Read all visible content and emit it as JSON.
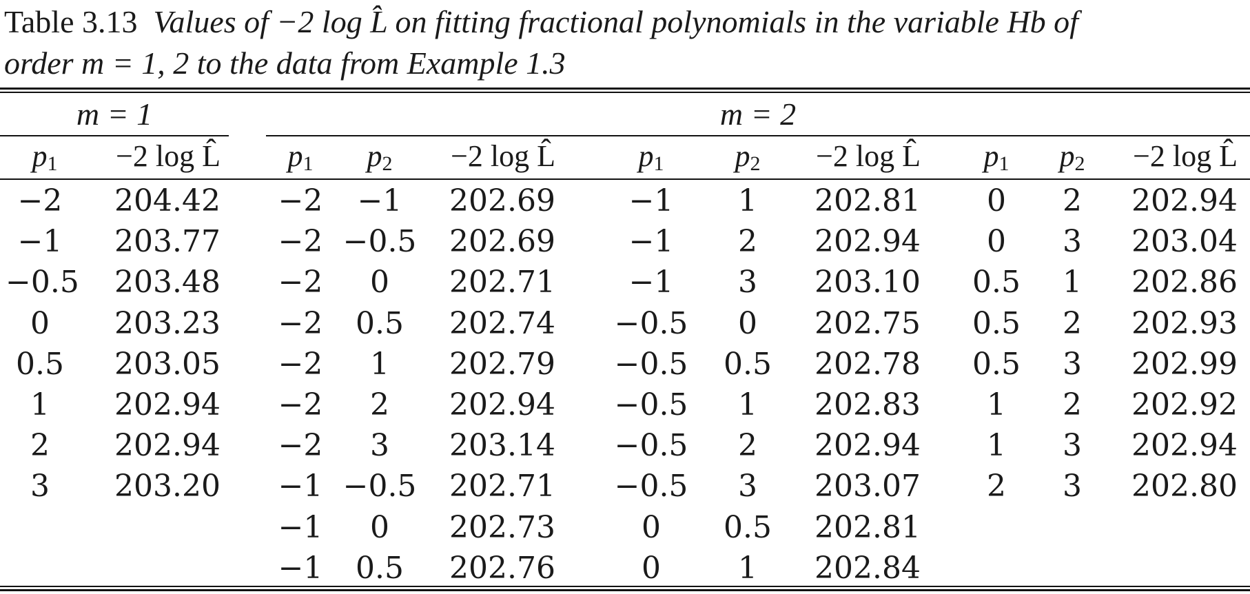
{
  "caption": {
    "number": "Table 3.13",
    "text_line1": "Values of −2 log L̂ on fitting fractional polynomials in the variable Hb of",
    "text_line2": "order m = 1, 2 to the data from Example 1.3"
  },
  "group_headers": {
    "m1": "m = 1",
    "m2": "m = 2"
  },
  "column_headers": {
    "p1": "p",
    "p2": "p",
    "sub1": "1",
    "sub2": "2",
    "dev": "−2 log L̂"
  },
  "tables": {
    "m1": [
      [
        "−2",
        "204.42"
      ],
      [
        "−1",
        "203.77"
      ],
      [
        "−0.5",
        "203.48"
      ],
      [
        "0",
        "203.23"
      ],
      [
        "0.5",
        "203.05"
      ],
      [
        "1",
        "202.94"
      ],
      [
        "2",
        "202.94"
      ],
      [
        "3",
        "203.20"
      ]
    ],
    "m2_a": [
      [
        "−2",
        "−1",
        "202.69"
      ],
      [
        "−2",
        "−0.5",
        "202.69"
      ],
      [
        "−2",
        "0",
        "202.71"
      ],
      [
        "−2",
        "0.5",
        "202.74"
      ],
      [
        "−2",
        "1",
        "202.79"
      ],
      [
        "−2",
        "2",
        "202.94"
      ],
      [
        "−2",
        "3",
        "203.14"
      ],
      [
        "−1",
        "−0.5",
        "202.71"
      ],
      [
        "−1",
        "0",
        "202.73"
      ],
      [
        "−1",
        "0.5",
        "202.76"
      ]
    ],
    "m2_b": [
      [
        "−1",
        "1",
        "202.81"
      ],
      [
        "−1",
        "2",
        "202.94"
      ],
      [
        "−1",
        "3",
        "203.10"
      ],
      [
        "−0.5",
        "0",
        "202.75"
      ],
      [
        "−0.5",
        "0.5",
        "202.78"
      ],
      [
        "−0.5",
        "1",
        "202.83"
      ],
      [
        "−0.5",
        "2",
        "202.94"
      ],
      [
        "−0.5",
        "3",
        "203.07"
      ],
      [
        "0",
        "0.5",
        "202.81"
      ],
      [
        "0",
        "1",
        "202.84"
      ]
    ],
    "m2_c": [
      [
        "0",
        "2",
        "202.94"
      ],
      [
        "0",
        "3",
        "203.04"
      ],
      [
        "0.5",
        "1",
        "202.86"
      ],
      [
        "0.5",
        "2",
        "202.93"
      ],
      [
        "0.5",
        "3",
        "202.99"
      ],
      [
        "1",
        "2",
        "202.92"
      ],
      [
        "1",
        "3",
        "202.94"
      ],
      [
        "2",
        "3",
        "202.80"
      ]
    ]
  }
}
